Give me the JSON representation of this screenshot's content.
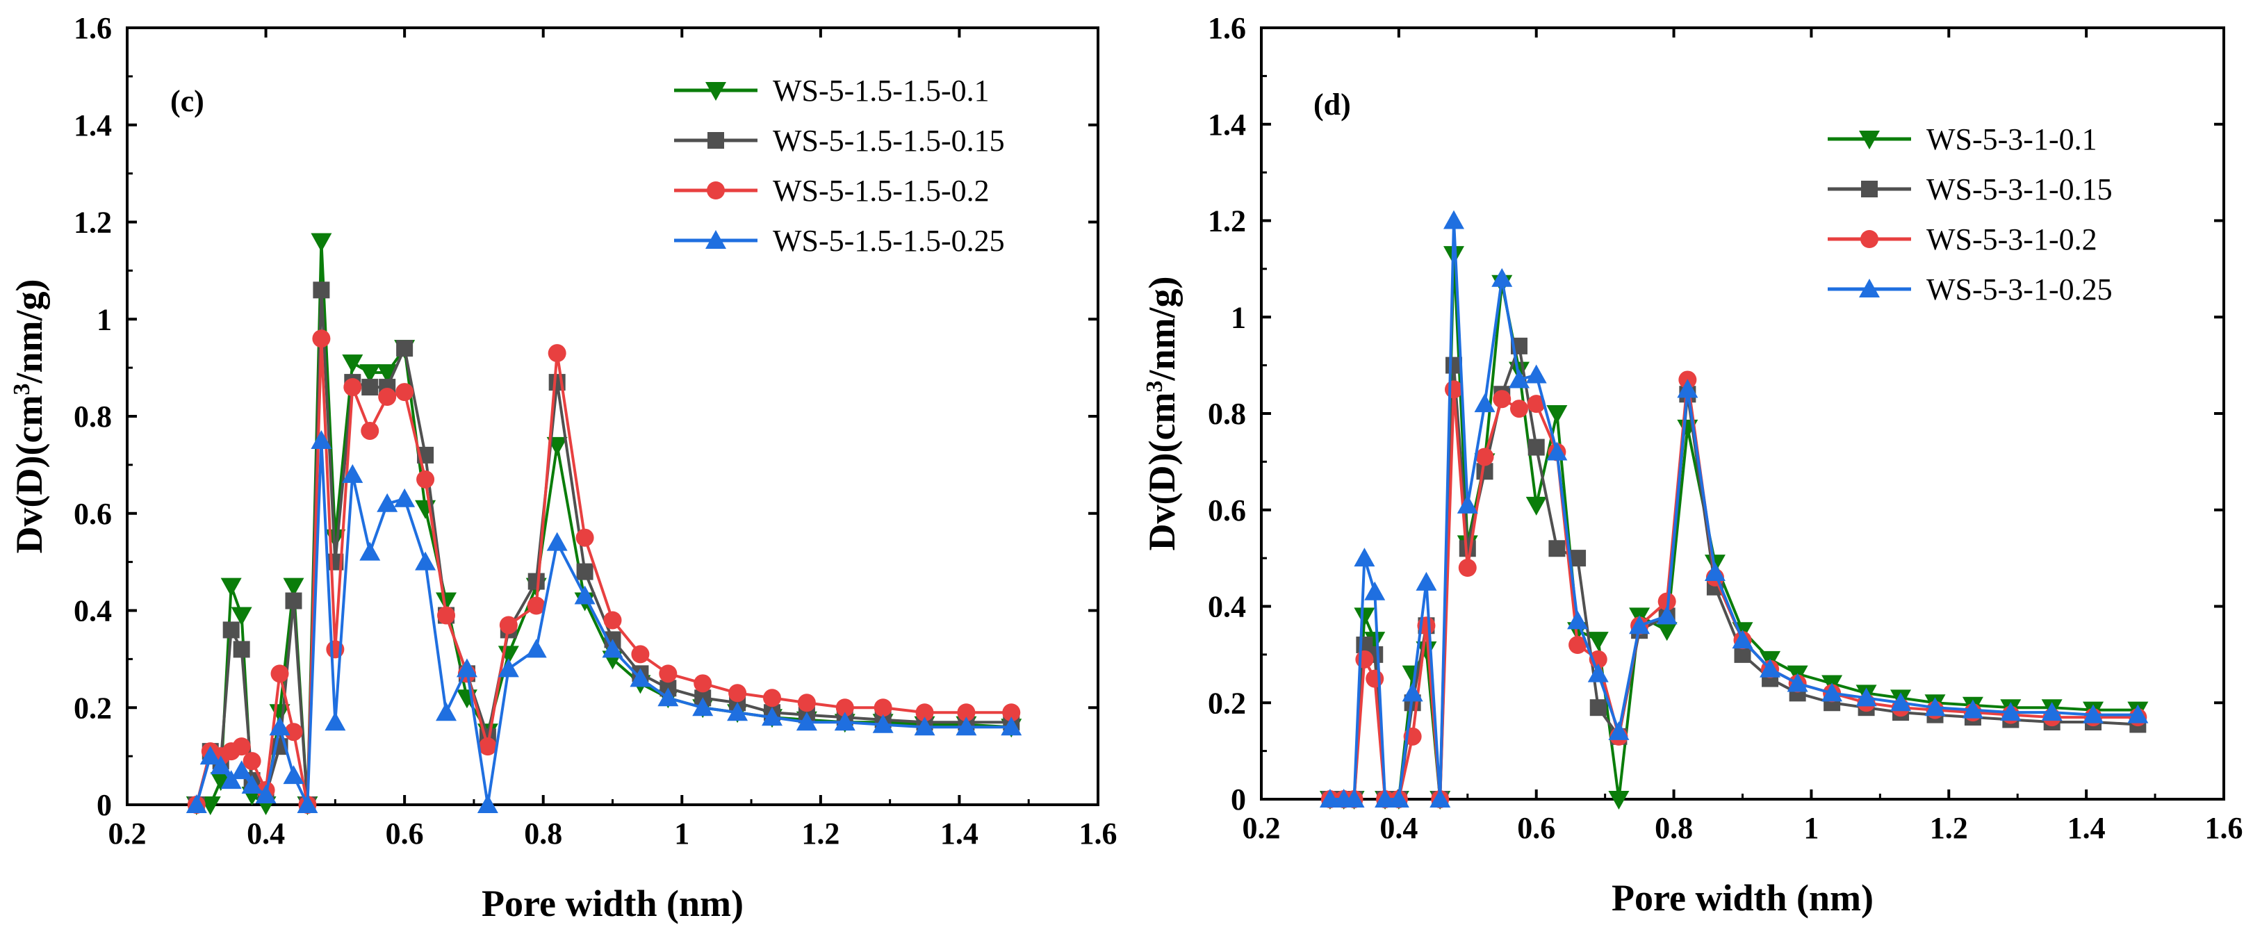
{
  "chart_data": [
    {
      "type": "line",
      "panel_label": "(c)",
      "xlabel": "Pore width (nm)",
      "ylabel_main": "Dv(D)(cm",
      "ylabel_sup": "3",
      "ylabel_tail": "/nm/g)",
      "xlim": [
        0.2,
        1.6
      ],
      "ylim": [
        0,
        1.6
      ],
      "xticks": [
        "0.2",
        "0.4",
        "0.6",
        "0.8",
        "1",
        "1.2",
        "1.4",
        "1.6"
      ],
      "yticks": [
        "0",
        "0.2",
        "0.4",
        "0.6",
        "0.8",
        "1",
        "1.2",
        "1.4",
        "1.6"
      ],
      "legend_position": "top-right",
      "grid": false,
      "x": [
        0.3,
        0.32,
        0.335,
        0.35,
        0.365,
        0.38,
        0.4,
        0.42,
        0.44,
        0.46,
        0.48,
        0.5,
        0.525,
        0.55,
        0.575,
        0.6,
        0.63,
        0.66,
        0.69,
        0.72,
        0.75,
        0.79,
        0.82,
        0.86,
        0.9,
        0.94,
        0.98,
        1.03,
        1.08,
        1.13,
        1.18,
        1.235,
        1.29,
        1.35,
        1.41,
        1.475
      ],
      "series": [
        {
          "name": "WS-5-1.5-1.5-0.1",
          "color": "#0a7d0a",
          "marker": "triangle-down",
          "values": [
            0,
            0,
            0.05,
            0.45,
            0.39,
            0.02,
            0,
            0.19,
            0.45,
            0,
            1.16,
            0.55,
            0.91,
            0.89,
            0.89,
            0.94,
            0.61,
            0.42,
            0.22,
            0.15,
            0.31,
            0.45,
            0.74,
            0.42,
            0.3,
            0.25,
            0.22,
            0.2,
            0.19,
            0.18,
            0.175,
            0.17,
            0.17,
            0.165,
            0.165,
            0.16
          ]
        },
        {
          "name": "WS-5-1.5-1.5-0.15",
          "color": "#505050",
          "marker": "square",
          "values": [
            0,
            0.11,
            0.09,
            0.36,
            0.32,
            0.05,
            0.02,
            0.12,
            0.42,
            0,
            1.06,
            0.5,
            0.87,
            0.86,
            0.86,
            0.94,
            0.72,
            0.39,
            0.27,
            0.14,
            0.36,
            0.46,
            0.87,
            0.48,
            0.34,
            0.27,
            0.24,
            0.22,
            0.21,
            0.19,
            0.185,
            0.18,
            0.175,
            0.17,
            0.17,
            0.17
          ]
        },
        {
          "name": "WS-5-1.5-1.5-0.2",
          "color": "#e84040",
          "marker": "circle",
          "values": [
            0,
            0.11,
            0.1,
            0.11,
            0.12,
            0.09,
            0.03,
            0.27,
            0.15,
            0,
            0.96,
            0.32,
            0.86,
            0.77,
            0.84,
            0.85,
            0.67,
            0.39,
            0.27,
            0.12,
            0.37,
            0.41,
            0.93,
            0.55,
            0.38,
            0.31,
            0.27,
            0.25,
            0.23,
            0.22,
            0.21,
            0.2,
            0.2,
            0.19,
            0.19,
            0.19
          ]
        },
        {
          "name": "WS-5-1.5-1.5-0.25",
          "color": "#1f6fe0",
          "marker": "triangle-up",
          "values": [
            0,
            0.1,
            0.08,
            0.05,
            0.07,
            0.04,
            0.02,
            0.16,
            0.06,
            0,
            0.75,
            0.17,
            0.68,
            0.52,
            0.62,
            0.63,
            0.5,
            0.19,
            0.28,
            0,
            0.28,
            0.32,
            0.54,
            0.43,
            0.32,
            0.26,
            0.22,
            0.2,
            0.19,
            0.18,
            0.17,
            0.17,
            0.165,
            0.16,
            0.16,
            0.16
          ]
        }
      ]
    },
    {
      "type": "line",
      "panel_label": "(d)",
      "xlabel": "Pore width (nm)",
      "ylabel_main": "Dv(D)(cm",
      "ylabel_sup": "3",
      "ylabel_tail": "/nm/g)",
      "xlim": [
        0.2,
        1.6
      ],
      "ylim": [
        0,
        1.6
      ],
      "xticks": [
        "0.2",
        "0.4",
        "0.6",
        "0.8",
        "1",
        "1.2",
        "1.4",
        "1.6"
      ],
      "yticks": [
        "0",
        "0.2",
        "0.4",
        "0.6",
        "0.8",
        "1",
        "1.2",
        "1.4",
        "1.6"
      ],
      "legend_position": "top-right",
      "grid": false,
      "x": [
        0.3,
        0.32,
        0.335,
        0.35,
        0.365,
        0.38,
        0.4,
        0.42,
        0.44,
        0.46,
        0.48,
        0.5,
        0.525,
        0.55,
        0.575,
        0.6,
        0.63,
        0.66,
        0.69,
        0.72,
        0.75,
        0.79,
        0.82,
        0.86,
        0.9,
        0.94,
        0.98,
        1.03,
        1.08,
        1.13,
        1.18,
        1.235,
        1.29,
        1.35,
        1.41,
        1.475
      ],
      "series": [
        {
          "name": "WS-5-3-1-0.1",
          "color": "#0a7d0a",
          "marker": "triangle-down",
          "values": [
            0,
            0,
            0,
            0.38,
            0.33,
            0,
            0,
            0.26,
            0.31,
            0,
            1.13,
            0.53,
            0.7,
            1.07,
            0.89,
            0.61,
            0.8,
            0.35,
            0.33,
            0,
            0.38,
            0.35,
            0.77,
            0.49,
            0.35,
            0.29,
            0.26,
            0.24,
            0.22,
            0.21,
            0.2,
            0.195,
            0.19,
            0.19,
            0.185,
            0.185
          ]
        },
        {
          "name": "WS-5-3-1-0.15",
          "color": "#505050",
          "marker": "square",
          "values": [
            0,
            0,
            0,
            0.32,
            0.3,
            0,
            0,
            0.2,
            0.36,
            0,
            0.9,
            0.52,
            0.68,
            0.84,
            0.94,
            0.73,
            0.52,
            0.5,
            0.19,
            0.13,
            0.35,
            0.38,
            0.84,
            0.44,
            0.3,
            0.25,
            0.22,
            0.2,
            0.19,
            0.18,
            0.175,
            0.17,
            0.165,
            0.16,
            0.16,
            0.155
          ]
        },
        {
          "name": "WS-5-3-1-0.2",
          "color": "#e84040",
          "marker": "circle",
          "values": [
            0,
            0,
            0,
            0.29,
            0.25,
            0,
            0,
            0.13,
            0.36,
            0,
            0.85,
            0.48,
            0.71,
            0.83,
            0.81,
            0.82,
            0.72,
            0.32,
            0.29,
            0.13,
            0.36,
            0.41,
            0.87,
            0.46,
            0.33,
            0.27,
            0.24,
            0.22,
            0.2,
            0.19,
            0.185,
            0.18,
            0.175,
            0.17,
            0.17,
            0.17
          ]
        },
        {
          "name": "WS-5-3-1-0.25",
          "color": "#1f6fe0",
          "marker": "triangle-up",
          "values": [
            0,
            0,
            0,
            0.5,
            0.43,
            0,
            0,
            0.22,
            0.45,
            0,
            1.2,
            0.61,
            0.82,
            1.08,
            0.87,
            0.88,
            0.72,
            0.37,
            0.26,
            0.14,
            0.36,
            0.38,
            0.85,
            0.47,
            0.33,
            0.27,
            0.24,
            0.22,
            0.21,
            0.2,
            0.19,
            0.185,
            0.18,
            0.18,
            0.175,
            0.175
          ]
        }
      ]
    }
  ]
}
